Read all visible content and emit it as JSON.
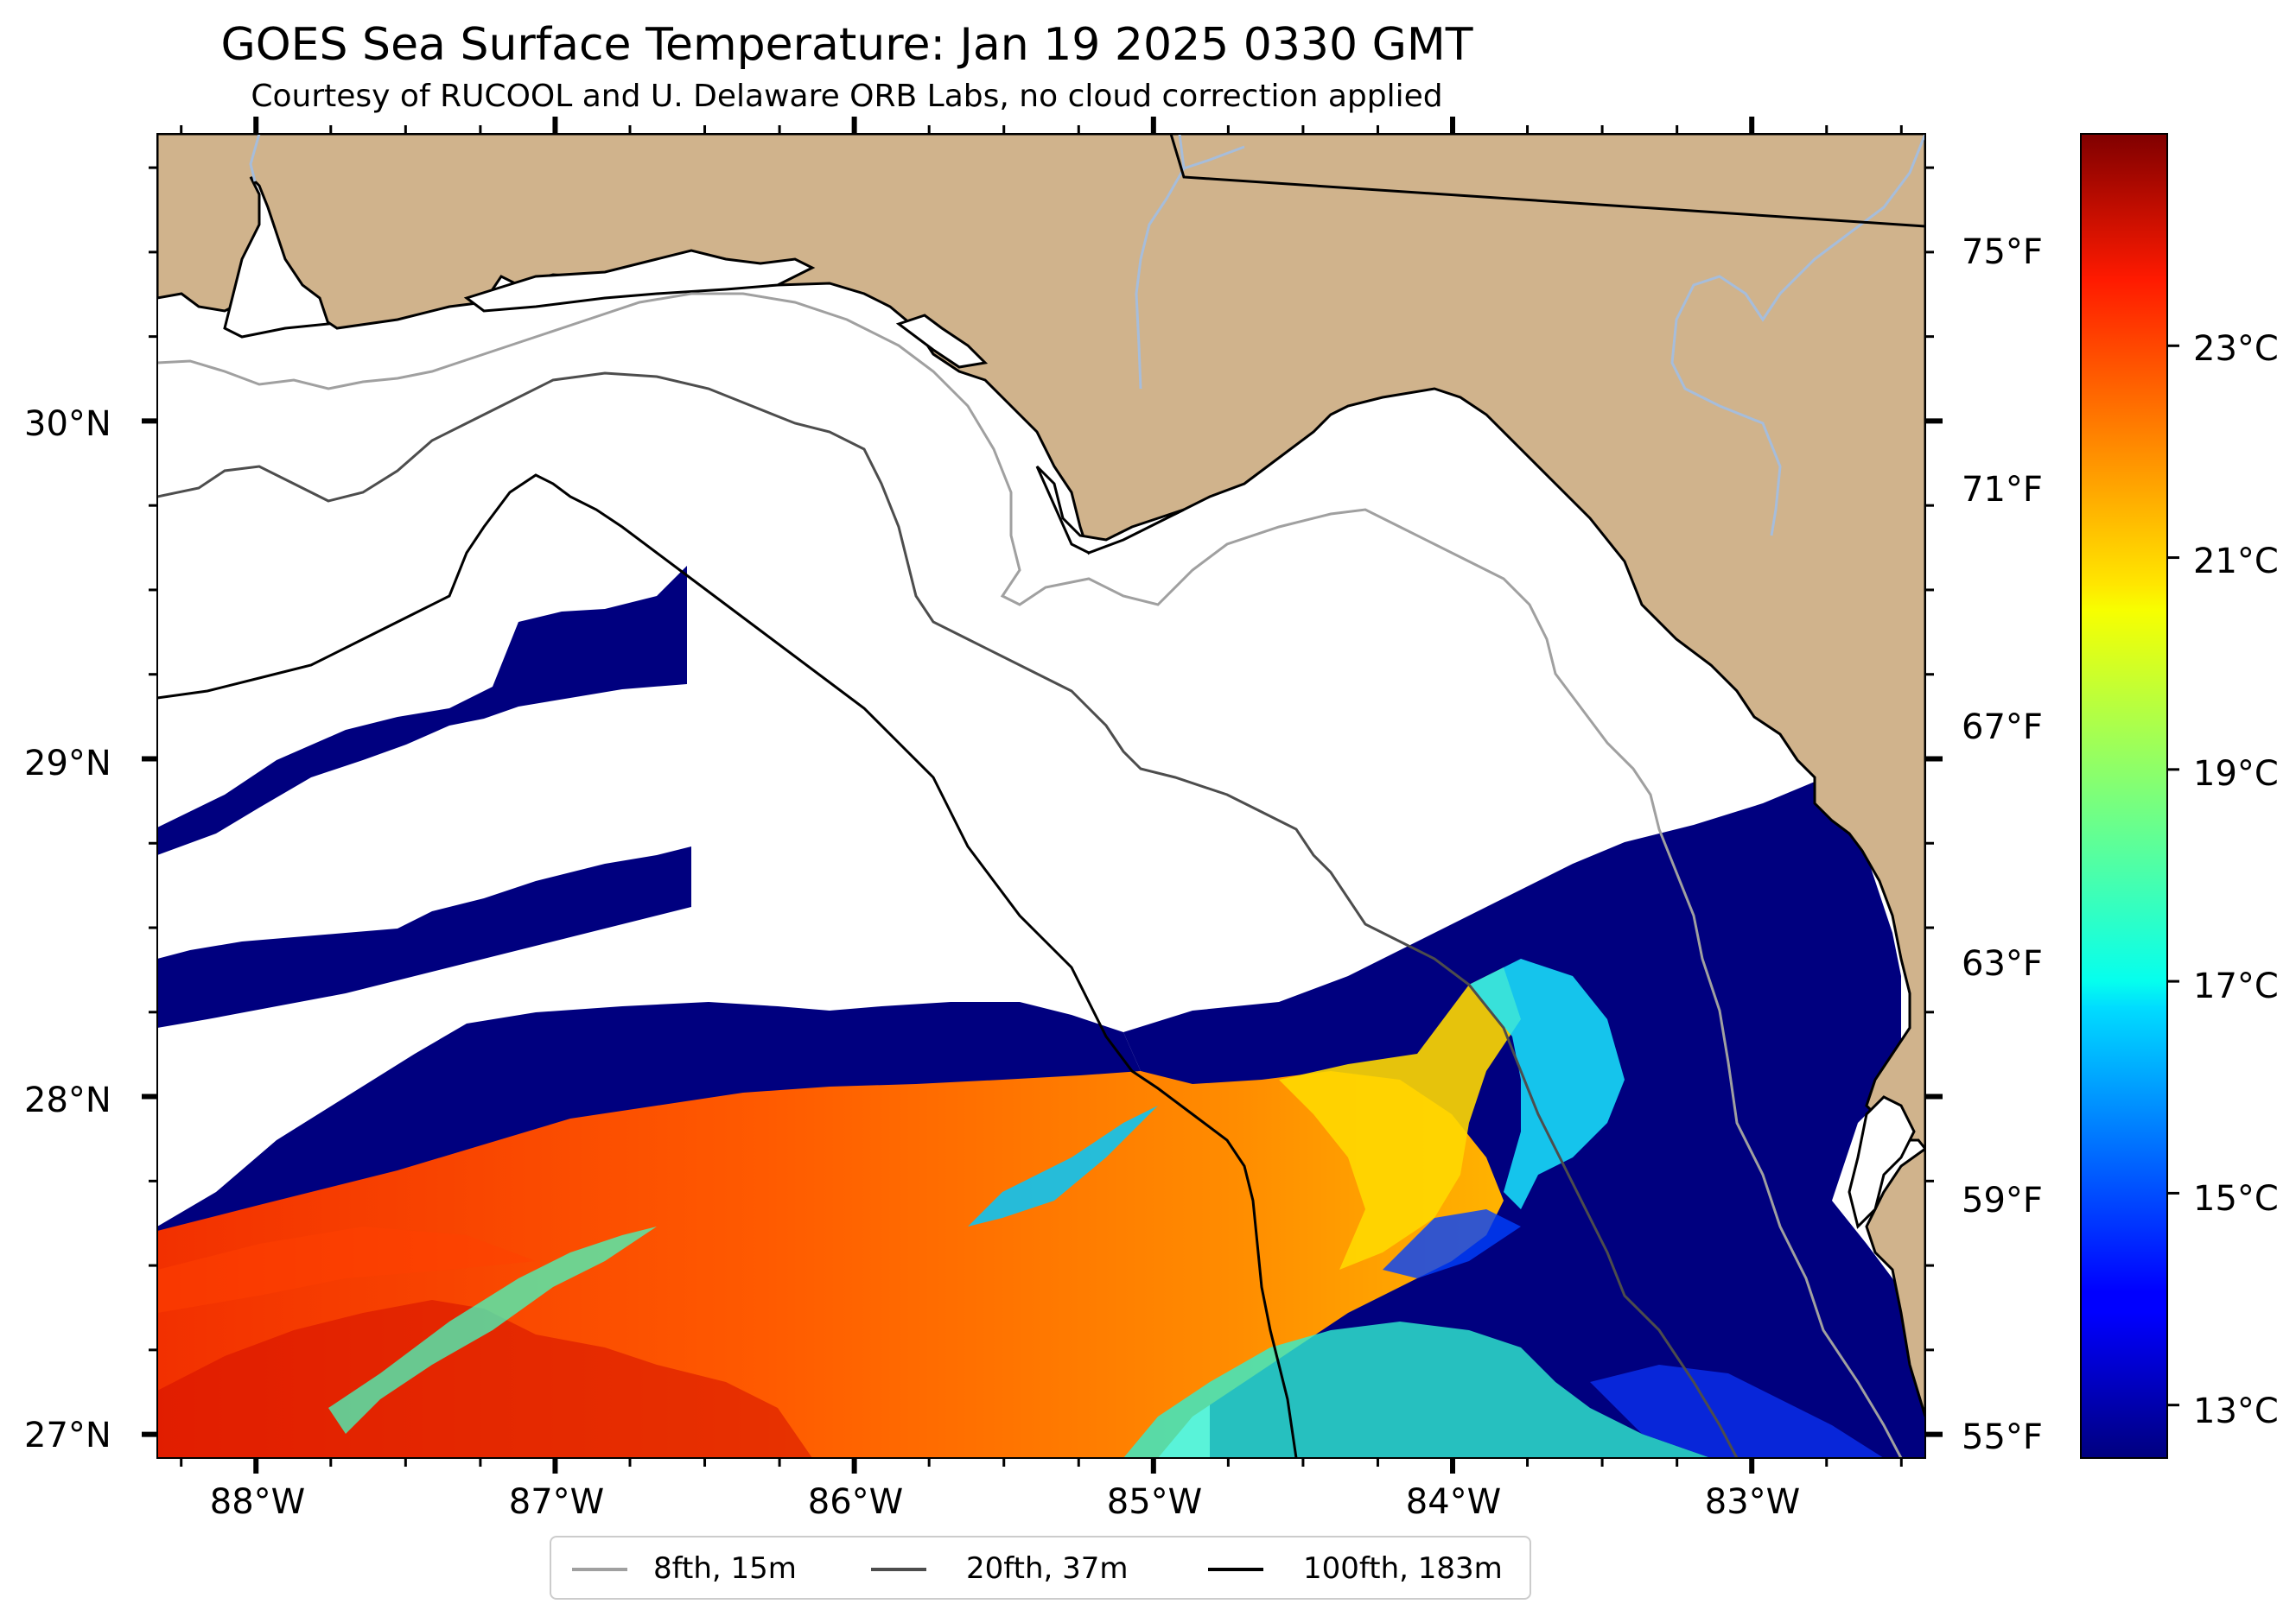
{
  "title": "GOES Sea Surface Temperature: Jan 19 2025 0330 GMT",
  "subtitle": "Courtesy of RUCOOL and U. Delaware ORB Labs, no cloud correction applied",
  "map": {
    "lat_ticks": [
      {
        "value": 30,
        "label": "30°N"
      },
      {
        "value": 29,
        "label": "29°N"
      },
      {
        "value": 28,
        "label": "28°N"
      },
      {
        "value": 27,
        "label": "27°N"
      }
    ],
    "lon_ticks": [
      {
        "value": -88,
        "label": "88°W"
      },
      {
        "value": -87,
        "label": "87°W"
      },
      {
        "value": -86,
        "label": "86°W"
      },
      {
        "value": -85,
        "label": "85°W"
      },
      {
        "value": -84,
        "label": "84°W"
      },
      {
        "value": -83,
        "label": "83°W"
      }
    ],
    "extent": {
      "lon": [
        -88.33,
        -82.42
      ],
      "lat": [
        26.93,
        30.85
      ]
    },
    "land_color": "#d0b38c",
    "no_data_color": "#ffffff",
    "river_color": "#a6bddb"
  },
  "fahrenheit_ticks": [
    {
      "value": 75,
      "label": "75°F"
    },
    {
      "value": 71,
      "label": "71°F"
    },
    {
      "value": 67,
      "label": "67°F"
    },
    {
      "value": 63,
      "label": "63°F"
    },
    {
      "value": 59,
      "label": "59°F"
    },
    {
      "value": 55,
      "label": "55°F"
    }
  ],
  "colorbar": {
    "colormap": "jet",
    "range_c": [
      12.5,
      25
    ],
    "ticks": [
      {
        "value": 23,
        "label": "23°C"
      },
      {
        "value": 21,
        "label": "21°C"
      },
      {
        "value": 19,
        "label": "19°C"
      },
      {
        "value": 17,
        "label": "17°C"
      },
      {
        "value": 15,
        "label": "15°C"
      },
      {
        "value": 13,
        "label": "13°C"
      }
    ]
  },
  "legend": [
    {
      "label": "8fth, 15m",
      "color": "#a0a0a0"
    },
    {
      "label": "20fth, 37m",
      "color": "#4d4d4d"
    },
    {
      "label": "100fth, 183m",
      "color": "#000000"
    }
  ]
}
